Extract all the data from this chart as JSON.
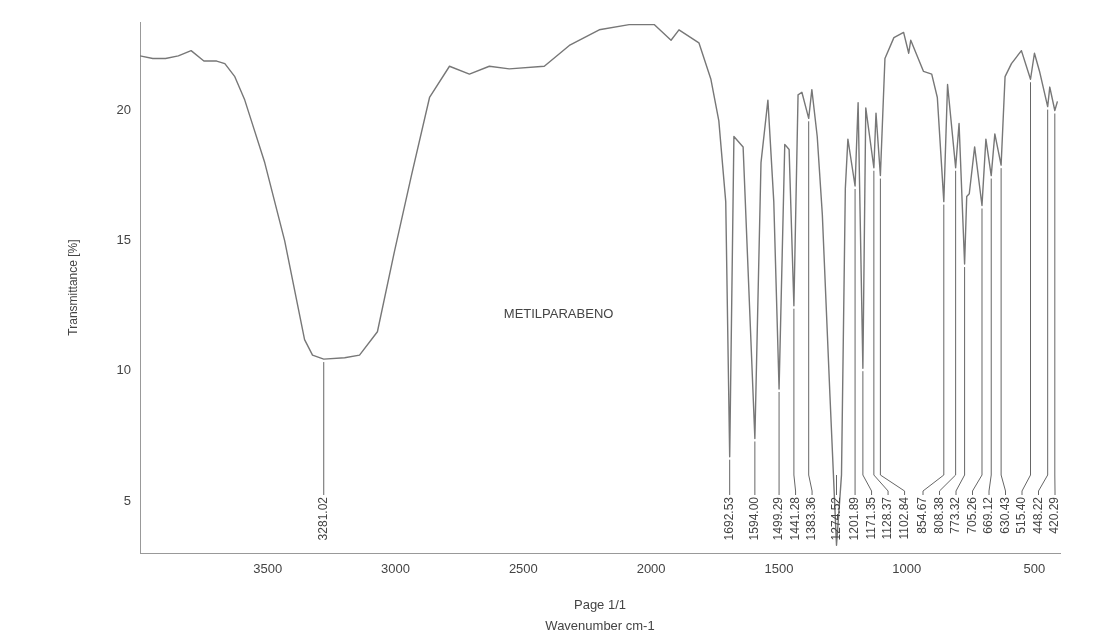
{
  "chart_data": {
    "type": "line",
    "xlabel": "Wavenumber cm-1",
    "ylabel": "Transmittance [%]",
    "color": "#777777",
    "grid": false,
    "legend": false,
    "marker": "none",
    "x": [
      4000,
      3950,
      3900,
      3850,
      3800,
      3750,
      3700,
      3668,
      3629,
      3590,
      3512,
      3434,
      3356,
      3325,
      3281.02,
      3199,
      3141,
      3071,
      3004,
      2938,
      2867,
      2789,
      2711,
      2633,
      2555,
      2418,
      2320,
      2203,
      2086,
      1988,
      1922,
      1891,
      1813,
      1766,
      1735,
      1708,
      1692.53,
      1676,
      1640,
      1594.0,
      1570,
      1543,
      1520,
      1499.29,
      1477,
      1460,
      1441.28,
      1425,
      1410,
      1383.36,
      1371,
      1350,
      1330,
      1300,
      1274.52,
      1255,
      1240,
      1230,
      1201.89,
      1190,
      1171.35,
      1160,
      1128.37,
      1120,
      1102.84,
      1085,
      1050,
      1012,
      992,
      984,
      934,
      902,
      880,
      854.67,
      840,
      808.38,
      795,
      773.32,
      765,
      755,
      734,
      705.26,
      690,
      669.12,
      655,
      630.43,
      615,
      590,
      551,
      515.4,
      500,
      480,
      448.22,
      440,
      420.29,
      410
    ],
    "values": [
      22.1,
      22.0,
      22.0,
      22.1,
      22.3,
      21.9,
      21.9,
      21.8,
      21.3,
      20.4,
      18.0,
      15.0,
      11.2,
      10.6,
      10.45,
      10.5,
      10.6,
      11.5,
      14.6,
      17.5,
      20.5,
      21.7,
      21.4,
      21.7,
      21.6,
      21.7,
      22.5,
      23.1,
      23.3,
      23.3,
      22.7,
      23.1,
      22.6,
      21.2,
      19.6,
      16.5,
      6.7,
      19.0,
      18.6,
      7.4,
      18.0,
      20.4,
      16.5,
      9.3,
      18.7,
      18.5,
      12.5,
      20.6,
      20.7,
      19.7,
      20.8,
      19.0,
      16.0,
      9.0,
      3.3,
      6.0,
      17.0,
      18.9,
      17.1,
      20.3,
      10.1,
      20.1,
      17.8,
      19.9,
      17.5,
      22.0,
      22.8,
      23.0,
      22.2,
      22.7,
      21.5,
      21.4,
      20.5,
      16.5,
      21.0,
      17.8,
      19.5,
      14.1,
      16.7,
      16.8,
      18.6,
      16.35,
      18.9,
      17.5,
      19.1,
      17.9,
      21.3,
      21.8,
      22.3,
      21.2,
      22.2,
      21.5,
      20.15,
      20.9,
      20.0,
      20.35
    ],
    "xlim": [
      4000,
      400
    ],
    "ylim": [
      3,
      23.4
    ],
    "xticks": [
      3500,
      3000,
      2500,
      2000,
      1500,
      1000,
      500
    ],
    "yticks": [
      5,
      10,
      15,
      20
    ],
    "annotations": [
      "METILPARABENO",
      "Page 1/1",
      {
        "text": "3281.02",
        "x": 3281.02,
        "y": 10.45
      },
      {
        "text": "1692.53",
        "x": 1692.53,
        "y": 6.7
      },
      {
        "text": "1594.00",
        "x": 1594.0,
        "y": 7.4
      },
      {
        "text": "1499.29",
        "x": 1499.29,
        "y": 9.3
      },
      {
        "text": "1441.28",
        "x": 1441.28,
        "y": 12.5
      },
      {
        "text": "1383.36",
        "x": 1383.36,
        "y": 19.7
      },
      {
        "text": "1274.52",
        "x": 1274.52,
        "y": 3.3
      },
      {
        "text": "1201.89",
        "x": 1201.89,
        "y": 17.1
      },
      {
        "text": "1171.35",
        "x": 1171.35,
        "y": 10.1
      },
      {
        "text": "1128.37",
        "x": 1128.37,
        "y": 17.8
      },
      {
        "text": "1102.84",
        "x": 1102.84,
        "y": 17.5
      },
      {
        "text": "854.67",
        "x": 854.67,
        "y": 16.5
      },
      {
        "text": "808.38",
        "x": 808.38,
        "y": 17.8
      },
      {
        "text": "773.32",
        "x": 773.32,
        "y": 14.1
      },
      {
        "text": "705.26",
        "x": 705.26,
        "y": 16.35
      },
      {
        "text": "669.12",
        "x": 669.12,
        "y": 17.5
      },
      {
        "text": "630.43",
        "x": 630.43,
        "y": 17.9
      },
      {
        "text": "515.40",
        "x": 515.4,
        "y": 21.2
      },
      {
        "text": "448.22",
        "x": 448.22,
        "y": 20.15
      },
      {
        "text": "420.29",
        "x": 420.29,
        "y": 20.0
      }
    ]
  }
}
